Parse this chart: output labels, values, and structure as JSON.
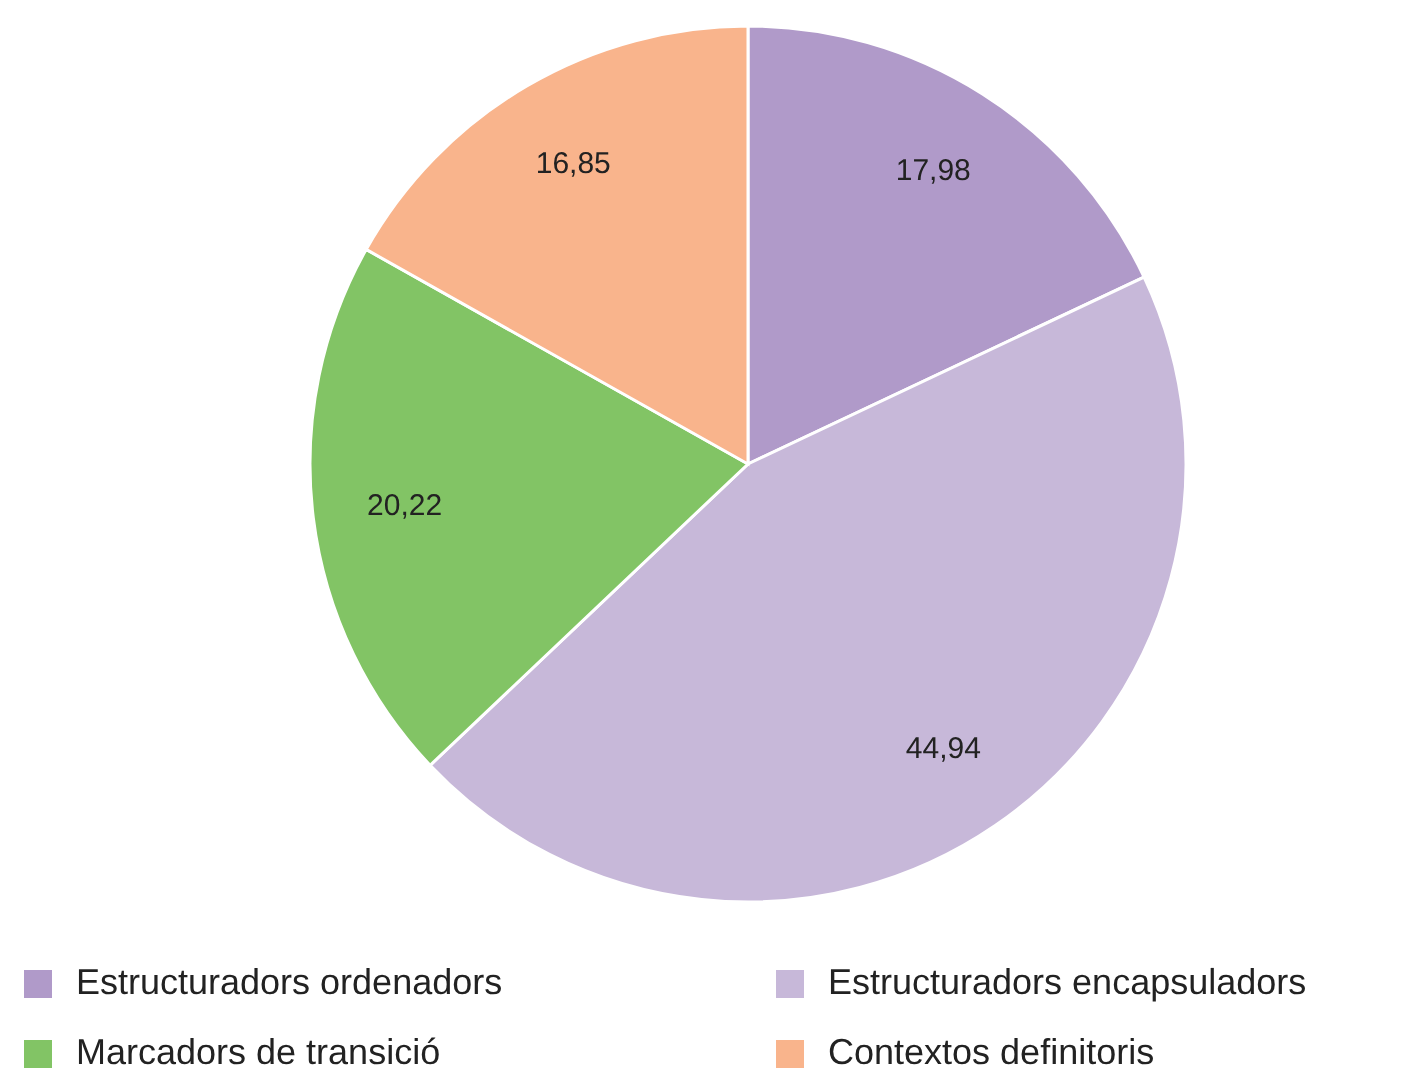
{
  "chart_data": {
    "type": "pie",
    "categories": [
      "Estructuradors ordenadors",
      "Estructuradors encapsuladors",
      "Marcadors de transició",
      "Contextos definitoris"
    ],
    "values": [
      17.98,
      44.94,
      20.22,
      16.85
    ],
    "value_labels": [
      "17,98",
      "44,94",
      "20,22",
      "16,85"
    ],
    "colors": [
      "#b09ac9",
      "#c7b8d9",
      "#82c465",
      "#f9b48c"
    ],
    "legend": "bottom"
  }
}
